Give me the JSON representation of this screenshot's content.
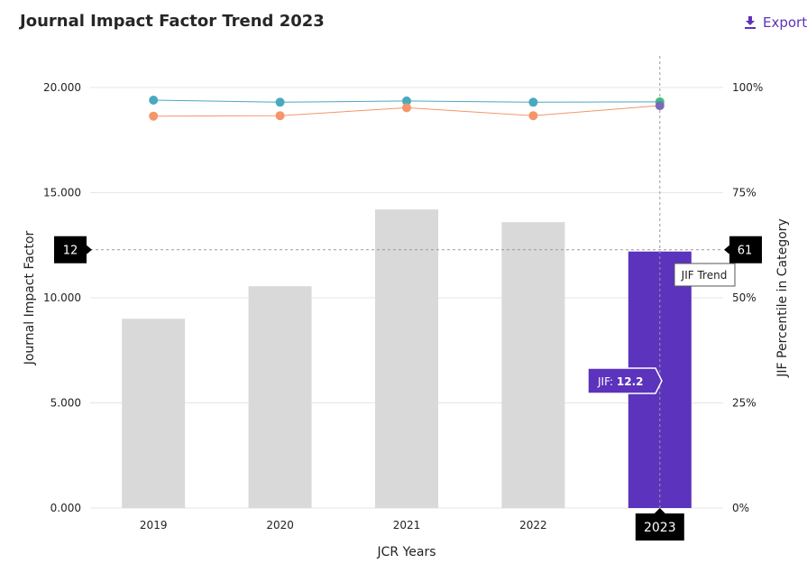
{
  "header": {
    "title": "Journal Impact Factor Trend 2023",
    "export_label": "Export"
  },
  "colors": {
    "accent": "#5b33bd",
    "bar": "#d9d9d9",
    "bar_selected": "#5b33bd",
    "line_teal": "#4aa9c0",
    "line_orange": "#f4956a",
    "marker_green": "#3fbf7f",
    "marker_purple": "#7a6ab8",
    "badge": "#000000"
  },
  "chart_data": {
    "type": "bar",
    "xlabel": "JCR Years",
    "ylabel": "Journal Impact Factor",
    "y2label": "JIF Percentile in Category",
    "ylim": [
      0,
      20
    ],
    "y2lim": [
      0,
      100
    ],
    "yticks": [
      "0.000",
      "5.000",
      "10.000",
      "15.000",
      "20.000"
    ],
    "y2ticks": [
      "0%",
      "25%",
      "50%",
      "75%",
      "100%"
    ],
    "categories": [
      "2019",
      "2020",
      "2021",
      "2022",
      "2023"
    ],
    "values": [
      9.0,
      10.55,
      14.2,
      13.6,
      12.2
    ],
    "selected_index": 4,
    "series": [
      {
        "values": [
          97,
          96.5,
          96.8,
          96.5,
          96.6
        ]
      },
      {
        "values": [
          93.2,
          93.3,
          95.2,
          93.3,
          95.7
        ]
      }
    ],
    "hover": {
      "x_badge": "2023",
      "y_badge_left": "12",
      "y_badge_right": "61",
      "tooltip_label": "JIF:",
      "tooltip_value": "12.2",
      "line_tooltip": "JIF Trend"
    }
  }
}
